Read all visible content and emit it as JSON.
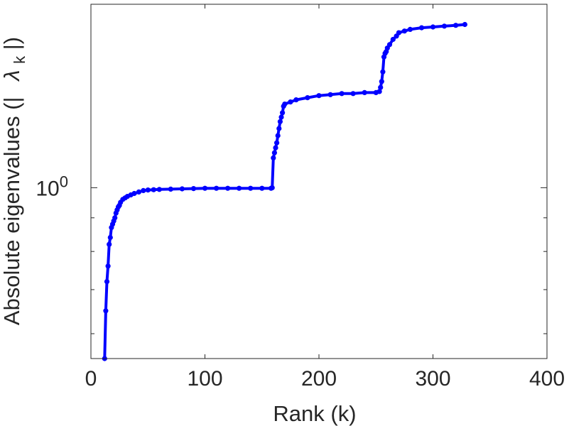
{
  "chart_data": {
    "type": "line",
    "title": "",
    "xlabel": "Rank (k)",
    "ylabel_main": "Absolute eigenvalues (|",
    "ylabel_symbol": "λ",
    "ylabel_subscript": "k",
    "ylabel_close": "|)",
    "x_ticks": [
      {
        "value": 0,
        "label": "0"
      },
      {
        "value": 100,
        "label": "100"
      },
      {
        "value": 200,
        "label": "200"
      },
      {
        "value": 300,
        "label": "300"
      },
      {
        "value": 400,
        "label": "400"
      }
    ],
    "y_ticks": [
      {
        "value": 1,
        "base": "10",
        "exponent": "0"
      }
    ],
    "xlim": [
      0,
      400
    ],
    "ylim": [
      0.55,
      1.9
    ],
    "yscale": "log",
    "grid": false,
    "series": [
      {
        "color": "#0000ff",
        "marker": "circle",
        "x": [
          12,
          13,
          14,
          15,
          16,
          17,
          18,
          19,
          20,
          21,
          22,
          23,
          24,
          25,
          26,
          28,
          30,
          32,
          35,
          38,
          42,
          46,
          50,
          55,
          60,
          70,
          80,
          90,
          100,
          110,
          120,
          130,
          140,
          150,
          158,
          159,
          160,
          161,
          162,
          163,
          164,
          165,
          166,
          167,
          168,
          169,
          170,
          175,
          180,
          190,
          200,
          210,
          220,
          230,
          240,
          250,
          253,
          254,
          255,
          256,
          257,
          258,
          259,
          260,
          262,
          265,
          268,
          270,
          275,
          280,
          290,
          300,
          310,
          320,
          328
        ],
        "y": [
          0.55,
          0.65,
          0.72,
          0.76,
          0.82,
          0.84,
          0.87,
          0.88,
          0.89,
          0.9,
          0.915,
          0.925,
          0.935,
          0.94,
          0.95,
          0.96,
          0.965,
          0.97,
          0.975,
          0.98,
          0.985,
          0.99,
          0.992,
          0.993,
          0.994,
          0.995,
          0.996,
          0.997,
          0.998,
          0.998,
          0.998,
          0.998,
          0.998,
          0.998,
          0.998,
          1.0,
          1.11,
          1.13,
          1.15,
          1.17,
          1.2,
          1.23,
          1.26,
          1.28,
          1.3,
          1.33,
          1.34,
          1.35,
          1.36,
          1.37,
          1.38,
          1.385,
          1.39,
          1.39,
          1.395,
          1.395,
          1.4,
          1.42,
          1.45,
          1.5,
          1.58,
          1.6,
          1.61,
          1.63,
          1.65,
          1.68,
          1.7,
          1.72,
          1.73,
          1.74,
          1.75,
          1.755,
          1.76,
          1.765,
          1.77
        ]
      }
    ]
  }
}
